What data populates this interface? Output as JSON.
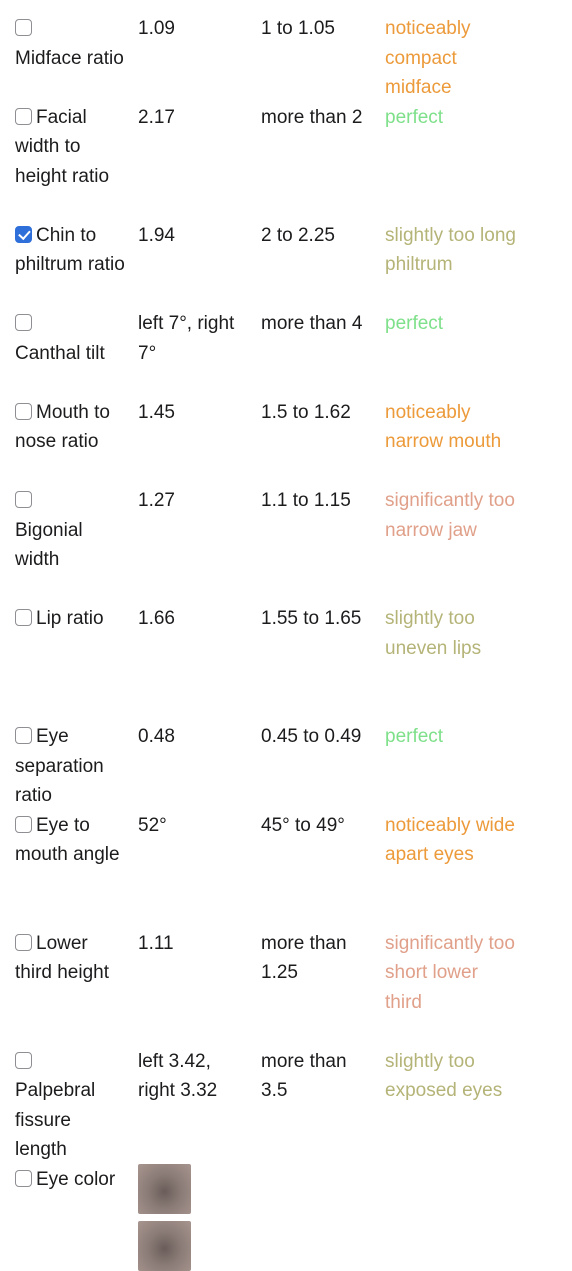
{
  "rows": [
    {
      "name": "Midface ratio",
      "name_break": true,
      "value": "1.09",
      "ideal": "1 to 1.05",
      "verdict": "noticeably compact midface",
      "verdict_color": "#ec9a3a",
      "checked": false,
      "lines": 3
    },
    {
      "name": "Facial width to height ratio",
      "name_break": false,
      "value": "2.17",
      "ideal": "more than 2",
      "verdict": "perfect",
      "verdict_color": "#7ee08a",
      "checked": false,
      "lines": 4
    },
    {
      "name": "Chin to philtrum ratio",
      "name_break": false,
      "value": "1.94",
      "ideal": "2 to 2.25",
      "verdict": "slightly too long philtrum",
      "verdict_color": "#b5b478",
      "checked": true,
      "lines": 3
    },
    {
      "name": "Canthal tilt",
      "name_break": true,
      "value": "left 7°, right 7°",
      "ideal": "more than 4",
      "verdict": "perfect",
      "verdict_color": "#7ee08a",
      "checked": false,
      "lines": 3
    },
    {
      "name": "Mouth to nose ratio",
      "name_break": false,
      "value": "1.45",
      "ideal": "1.5 to 1.62",
      "verdict": "noticeably narrow mouth",
      "verdict_color": "#ec9a3a",
      "checked": false,
      "lines": 3
    },
    {
      "name": "Bigonial width",
      "name_break": true,
      "value": "1.27",
      "ideal": "1.1 to 1.15",
      "verdict": "significantly too narrow jaw",
      "verdict_color": "#e0a08a",
      "checked": false,
      "lines": 4
    },
    {
      "name": "Lip ratio",
      "name_break": false,
      "value": "1.66",
      "ideal": "1.55 to 1.65",
      "verdict": "slightly too uneven lips",
      "verdict_color": "#b5b478",
      "checked": false,
      "lines": 4
    },
    {
      "name": "Eye separation ratio",
      "name_break": false,
      "value": "0.48",
      "ideal": "0.45 to 0.49",
      "verdict": "perfect",
      "verdict_color": "#7ee08a",
      "checked": false,
      "lines": 3
    },
    {
      "name": "Eye to mouth angle",
      "name_break": false,
      "value": "52°",
      "ideal": "45° to 49°",
      "verdict": "noticeably wide apart eyes",
      "verdict_color": "#ec9a3a",
      "checked": false,
      "lines": 4
    },
    {
      "name": "Lower third height",
      "name_break": false,
      "value": "1.11",
      "ideal": "more than 1.25",
      "verdict": "significantly too short lower third",
      "verdict_color": "#e0a08a",
      "checked": false,
      "lines": 4
    },
    {
      "name": "Palpebral fissure length",
      "name_break": true,
      "value": "left 3.42, right 3.32",
      "ideal": "more than 3.5",
      "verdict": "slightly too exposed eyes",
      "verdict_color": "#b5b478",
      "checked": false,
      "lines": 4
    },
    {
      "name": "Eye color",
      "name_break": false,
      "value": "",
      "ideal": "",
      "verdict": "",
      "verdict_color": "#1c1c1e",
      "checked": false,
      "lines": 2,
      "swatch": true
    }
  ]
}
